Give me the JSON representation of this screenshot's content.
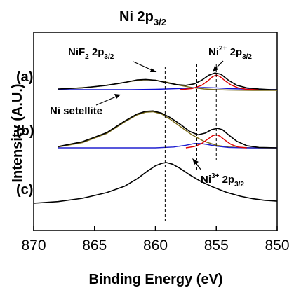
{
  "chart_data": {
    "type": "line",
    "title_main": "Ni 2p",
    "title_sub": "3/2",
    "xlabel": "Binding Energy (eV)",
    "ylabel": "Intensity (A.U.)",
    "xlim": [
      870,
      850
    ],
    "x_reversed": true,
    "x_ticks": [
      "870",
      "865",
      "860",
      "855",
      "850"
    ],
    "x_tick_values": [
      870,
      865,
      860,
      855,
      850
    ],
    "y_ticks_shown": false,
    "grid": false,
    "reference_lines_eV": [
      859.2,
      856.6,
      855.0
    ],
    "colors": {
      "measured": "#000000",
      "satellite_fit": "#7a6b18",
      "ni2_fit": "#e00000",
      "baseline": "#1010d0",
      "ni3_fit": "#2020d0"
    },
    "panels": {
      "a": "(a)",
      "b": "(b)",
      "c": "(c)"
    },
    "annotations": {
      "nif2": {
        "main": "NiF",
        "sub1": "2",
        "mid": " 2p",
        "sub2": "3/2"
      },
      "ni2": {
        "main": "Ni",
        "sup": "2+",
        "mid": " 2p",
        "sub": "3/2"
      },
      "ni3": {
        "main": "Ni",
        "sup": "3+",
        "mid": " 2p",
        "sub": "3/2"
      },
      "sat": "Ni setellite"
    },
    "series": [
      {
        "panel": "a",
        "curves": [
          {
            "role": "measured",
            "x": [
              868,
              866,
              864,
              862.5,
              861.5,
              860.8,
              860,
              859.2,
              858.3,
              857.5,
              856.8,
              856.2,
              855.6,
              855.1,
              854.6,
              854.0,
              853.3,
              852.5,
              851.5,
              850.5,
              850
            ],
            "y": [
              0.02,
              0.05,
              0.12,
              0.2,
              0.27,
              0.28,
              0.26,
              0.2,
              0.14,
              0.12,
              0.16,
              0.26,
              0.4,
              0.46,
              0.42,
              0.26,
              0.12,
              0.05,
              0.02,
              0.0,
              0.0
            ]
          },
          {
            "role": "satellite_fit",
            "x": [
              868,
              865,
              863,
              862,
              861,
              860.5,
              860,
              859,
              858,
              857,
              856,
              855,
              854,
              852,
              850
            ],
            "y": [
              0.01,
              0.08,
              0.17,
              0.23,
              0.27,
              0.27,
              0.26,
              0.2,
              0.12,
              0.06,
              0.02,
              0.0,
              -0.01,
              -0.02,
              -0.02
            ]
          },
          {
            "role": "ni2_fit",
            "x": [
              858,
              857,
              856.2,
              855.7,
              855.3,
              855.0,
              854.7,
              854.3,
              853.8,
              853.2,
              852.5,
              851.5
            ],
            "y": [
              0.0,
              0.03,
              0.12,
              0.24,
              0.36,
              0.4,
              0.36,
              0.25,
              0.13,
              0.05,
              0.01,
              0.0
            ]
          },
          {
            "role": "baseline",
            "x": [
              868,
              865,
              862,
              860,
              858,
              857,
              856,
              855,
              854,
              852,
              850
            ],
            "y": [
              0.0,
              0.0,
              0.0,
              0.01,
              0.03,
              0.05,
              0.06,
              0.05,
              0.03,
              0.01,
              0.0
            ]
          }
        ]
      },
      {
        "panel": "b",
        "curves": [
          {
            "role": "measured",
            "x": [
              868,
              866,
              864,
              862.5,
              861.5,
              860.8,
              860.2,
              859.5,
              858.8,
              858.0,
              857.2,
              856.5,
              855.9,
              855.4,
              854.9,
              854.5,
              854.0,
              853.3,
              852.5,
              851.5,
              850
            ],
            "y": [
              0.03,
              0.14,
              0.35,
              0.62,
              0.78,
              0.84,
              0.85,
              0.8,
              0.7,
              0.55,
              0.38,
              0.3,
              0.34,
              0.42,
              0.45,
              0.42,
              0.3,
              0.15,
              0.05,
              0.01,
              0.0
            ]
          },
          {
            "role": "satellite_fit",
            "x": [
              868,
              866,
              864,
              862.5,
              861.5,
              860.8,
              860.2,
              859.5,
              858.8,
              858.0,
              857.0,
              856,
              855,
              854,
              852,
              850
            ],
            "y": [
              0.02,
              0.12,
              0.33,
              0.6,
              0.76,
              0.82,
              0.83,
              0.78,
              0.66,
              0.5,
              0.3,
              0.15,
              0.06,
              0.02,
              0.0,
              0.0
            ]
          },
          {
            "role": "ni2_fit",
            "x": [
              857.5,
              856.8,
              856.2,
              855.7,
              855.3,
              855.0,
              854.7,
              854.3,
              853.8,
              853.2,
              852.5
            ],
            "y": [
              0.0,
              0.03,
              0.1,
              0.2,
              0.28,
              0.3,
              0.27,
              0.18,
              0.08,
              0.02,
              0.0
            ]
          },
          {
            "role": "ni3_fit",
            "x": [
              868,
              865,
              862,
              860,
              858.5,
              857.5,
              856.8,
              856.3,
              855.8,
              855.0,
              854.0,
              852.5,
              850
            ],
            "y": [
              0.0,
              0.0,
              0.0,
              0.0,
              0.02,
              0.06,
              0.1,
              0.1,
              0.08,
              0.04,
              0.01,
              0.0,
              0.0
            ]
          }
        ]
      },
      {
        "panel": "c",
        "curves": [
          {
            "role": "measured",
            "x": [
              870,
              868,
              866,
              864,
              862.5,
              861.5,
              860.7,
              860.0,
              859.5,
              859.1,
              858.6,
              858.0,
              857.2,
              856.3,
              855.3,
              854.2,
              853,
              852,
              851,
              850
            ],
            "y": [
              0.0,
              0.04,
              0.12,
              0.26,
              0.42,
              0.6,
              0.78,
              0.92,
              0.98,
              1.0,
              0.96,
              0.86,
              0.7,
              0.54,
              0.4,
              0.27,
              0.17,
              0.11,
              0.07,
              0.05
            ]
          }
        ]
      }
    ]
  }
}
